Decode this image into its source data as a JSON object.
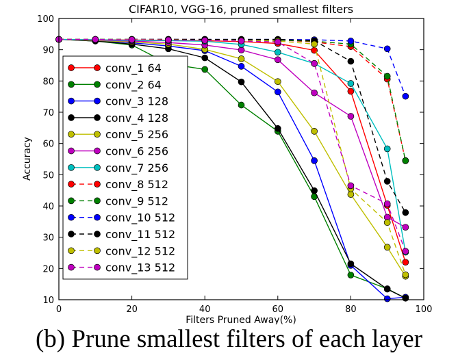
{
  "caption": "(b) Prune smallest filters of each layer",
  "chart_data": {
    "type": "line",
    "title": "CIFAR10, VGG-16, pruned smallest filters",
    "xlabel": "Filters Pruned Away(%)",
    "ylabel": "Accuracy",
    "xlim": [
      0,
      100
    ],
    "ylim": [
      10,
      100
    ],
    "xticks": [
      0,
      20,
      40,
      60,
      80,
      100
    ],
    "yticks": [
      10,
      20,
      30,
      40,
      50,
      60,
      70,
      80,
      90,
      100
    ],
    "grid": false,
    "legend_position": "left",
    "x": [
      0,
      10,
      20,
      30,
      40,
      50,
      60,
      70,
      80,
      90,
      95
    ],
    "series": [
      {
        "name": "conv_1 64",
        "color": "#ff0000",
        "dashed": false,
        "values": [
          93.3,
          93.2,
          93.1,
          93.0,
          92.9,
          92.6,
          92.0,
          89.8,
          76.7,
          40.2,
          22.0
        ]
      },
      {
        "name": "conv_2 64",
        "color": "#008000",
        "dashed": false,
        "values": [
          93.3,
          92.8,
          91.5,
          85.5,
          83.7,
          72.3,
          63.9,
          43.0,
          17.9,
          13.5,
          10.5
        ]
      },
      {
        "name": "conv_3 128",
        "color": "#0000ff",
        "dashed": false,
        "values": [
          93.3,
          93.0,
          92.2,
          91.2,
          89.7,
          84.7,
          76.5,
          54.5,
          21.0,
          10.3,
          10.8
        ]
      },
      {
        "name": "conv_4 128",
        "color": "#000000",
        "dashed": false,
        "values": [
          93.3,
          92.8,
          91.8,
          90.3,
          87.4,
          79.7,
          64.8,
          44.9,
          21.5,
          13.4,
          10.5
        ]
      },
      {
        "name": "conv_5 256",
        "color": "#bfbf00",
        "dashed": false,
        "values": [
          93.3,
          93.0,
          92.5,
          91.8,
          90.1,
          87.1,
          79.8,
          63.9,
          43.7,
          26.8,
          17.5
        ]
      },
      {
        "name": "conv_6 256",
        "color": "#bf00bf",
        "dashed": false,
        "values": [
          93.3,
          93.1,
          92.8,
          92.3,
          91.5,
          89.9,
          86.8,
          76.2,
          68.7,
          36.4,
          33.2
        ]
      },
      {
        "name": "conv_7 256",
        "color": "#00bfbf",
        "dashed": false,
        "values": [
          93.3,
          93.2,
          93.0,
          92.9,
          92.7,
          91.7,
          89.2,
          85.6,
          79.2,
          58.3,
          25.2
        ]
      },
      {
        "name": "conv_8 512",
        "color": "#ff0000",
        "dashed": true,
        "values": [
          93.3,
          93.3,
          93.3,
          93.3,
          93.3,
          93.2,
          93.1,
          92.5,
          91.0,
          80.6,
          54.5
        ]
      },
      {
        "name": "conv_9 512",
        "color": "#008000",
        "dashed": true,
        "values": [
          93.3,
          93.3,
          93.3,
          93.3,
          93.3,
          93.2,
          93.1,
          92.7,
          91.8,
          81.5,
          54.5
        ]
      },
      {
        "name": "conv_10 512",
        "color": "#0000ff",
        "dashed": true,
        "values": [
          93.3,
          93.3,
          93.3,
          93.3,
          93.3,
          93.3,
          93.3,
          93.2,
          92.8,
          90.3,
          75.1
        ]
      },
      {
        "name": "conv_11 512",
        "color": "#000000",
        "dashed": true,
        "values": [
          93.3,
          93.3,
          93.3,
          93.3,
          93.3,
          93.3,
          93.3,
          92.9,
          86.3,
          47.9,
          37.9
        ]
      },
      {
        "name": "conv_12 512",
        "color": "#bfbf00",
        "dashed": true,
        "values": [
          93.3,
          93.3,
          93.3,
          93.2,
          93.0,
          93.0,
          92.8,
          91.8,
          45.5,
          34.7,
          18.0
        ]
      },
      {
        "name": "conv_13 512",
        "color": "#bf00bf",
        "dashed": true,
        "values": [
          93.3,
          93.3,
          93.2,
          93.1,
          93.0,
          92.8,
          92.5,
          85.6,
          46.5,
          40.7,
          25.5
        ]
      }
    ]
  }
}
